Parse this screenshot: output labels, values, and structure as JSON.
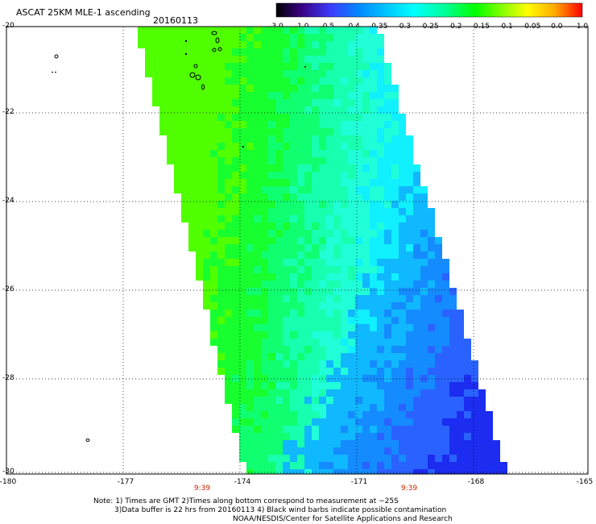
{
  "header": {
    "title": "ASCAT 25KM MLE-1 ascending",
    "date": "20160113"
  },
  "colorbar": {
    "ticks": [
      "-3.0",
      "-1.0",
      "-0.5",
      "-0.4",
      "-0.35",
      "-0.3",
      "-0.25",
      "-0.2",
      "-0.15",
      "-0.1",
      "-0.05",
      "0.0",
      "1.0"
    ],
    "colors": [
      "#000000",
      "#3a0080",
      "#3c3cff",
      "#0088ff",
      "#00ccff",
      "#00ffff",
      "#00ff99",
      "#00ff00",
      "#88ff00",
      "#ffff00",
      "#ffaa00",
      "#ff4400",
      "#ff0000"
    ]
  },
  "map": {
    "lat_labels": [
      "-20",
      "-22",
      "-24",
      "-26",
      "-28",
      "-30"
    ],
    "lon_labels": [
      "-180",
      "-177",
      "-174",
      "-171",
      "-168",
      "-165"
    ],
    "time_labels": [
      "9:39",
      "9:39"
    ]
  },
  "notes": {
    "line1": "Note: 1) Times are GMT 2)Times along bottom correspond to measurement at ~25S",
    "line2": "3)Data buffer is 22 hrs from 20160113 4) Black wind barbs indicate possible contamination",
    "line3": "NOAA/NESDIS/Center for Satellite Applications and Research"
  }
}
